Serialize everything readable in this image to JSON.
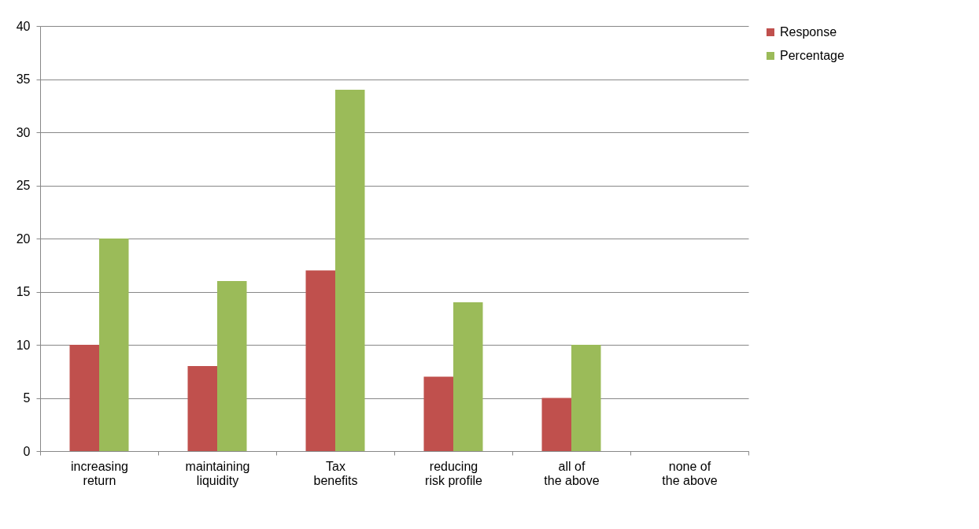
{
  "chart_data": {
    "type": "bar",
    "categories": [
      "increasing return",
      "maintaining liquidity",
      "Tax benefits",
      "reducing risk profile",
      "all of the above",
      "none of the above"
    ],
    "series": [
      {
        "name": "Response",
        "color": "#c0504d",
        "values": [
          10,
          8,
          17,
          7,
          5,
          0
        ]
      },
      {
        "name": "Percentage",
        "color": "#9bbb59",
        "values": [
          20,
          16,
          34,
          14,
          10,
          0
        ]
      }
    ],
    "ylim": [
      0,
      40
    ],
    "yticks": [
      0,
      5,
      10,
      15,
      20,
      25,
      30,
      35,
      40
    ],
    "grid": "y",
    "legend": "right"
  }
}
